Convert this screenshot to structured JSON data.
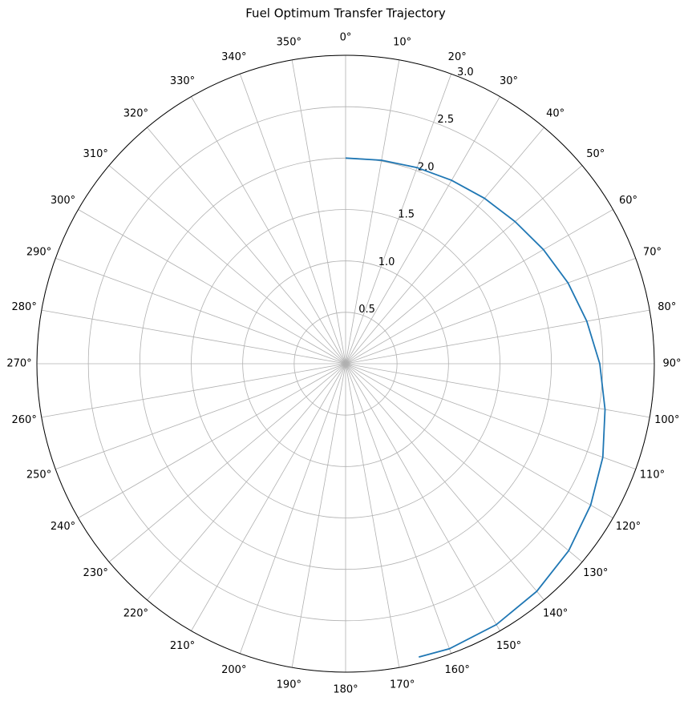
{
  "chart_data": {
    "type": "polar",
    "title": "Fuel Optimum Transfer Trajectory",
    "theta_direction": "clockwise",
    "theta_zero": "N",
    "grid": true,
    "series": [
      {
        "color": "#1f77b4",
        "x": [
          0,
          10,
          20,
          30,
          40,
          50,
          60,
          70,
          80,
          90,
          100,
          110,
          120,
          130,
          140,
          150,
          160,
          166
        ],
        "values": [
          2.0,
          2.01,
          2.03,
          2.06,
          2.1,
          2.15,
          2.22,
          2.3,
          2.38,
          2.47,
          2.56,
          2.66,
          2.75,
          2.83,
          2.89,
          2.93,
          2.95,
          2.94
        ]
      }
    ],
    "ylim": [
      0,
      3
    ],
    "yticks": [
      0.5,
      {
        "value": 1,
        "label": "1.0"
      },
      1.5,
      {
        "value": 2,
        "label": "2.0"
      },
      2.5,
      {
        "value": 3,
        "label": "3.0"
      }
    ],
    "xticks": [
      {
        "value": 0,
        "label": "0°"
      },
      {
        "value": 10,
        "label": "10°"
      },
      {
        "value": 20,
        "label": "20°"
      },
      {
        "value": 30,
        "label": "30°"
      },
      {
        "value": 40,
        "label": "40°"
      },
      {
        "value": 50,
        "label": "50°"
      },
      {
        "value": 60,
        "label": "60°"
      },
      {
        "value": 70,
        "label": "70°"
      },
      {
        "value": 80,
        "label": "80°"
      },
      {
        "value": 90,
        "label": "90°"
      },
      {
        "value": 100,
        "label": "100°"
      },
      {
        "value": 110,
        "label": "110°"
      },
      {
        "value": 120,
        "label": "120°"
      },
      {
        "value": 130,
        "label": "130°"
      },
      {
        "value": 140,
        "label": "140°"
      },
      {
        "value": 150,
        "label": "150°"
      },
      {
        "value": 160,
        "label": "160°"
      },
      {
        "value": 170,
        "label": "170°"
      },
      {
        "value": 180,
        "label": "180°"
      },
      {
        "value": 190,
        "label": "190°"
      },
      {
        "value": 200,
        "label": "200°"
      },
      {
        "value": 210,
        "label": "210°"
      },
      {
        "value": 220,
        "label": "220°"
      },
      {
        "value": 230,
        "label": "230°"
      },
      {
        "value": 240,
        "label": "240°"
      },
      {
        "value": 250,
        "label": "250°"
      },
      {
        "value": 260,
        "label": "260°"
      },
      {
        "value": 270,
        "label": "270°"
      },
      {
        "value": 280,
        "label": "280°"
      },
      {
        "value": 290,
        "label": "290°"
      },
      {
        "value": 300,
        "label": "300°"
      },
      {
        "value": 310,
        "label": "310°"
      },
      {
        "value": 320,
        "label": "320°"
      },
      {
        "value": 330,
        "label": "330°"
      },
      {
        "value": 340,
        "label": "340°"
      },
      {
        "value": 350,
        "label": "350°"
      }
    ]
  }
}
